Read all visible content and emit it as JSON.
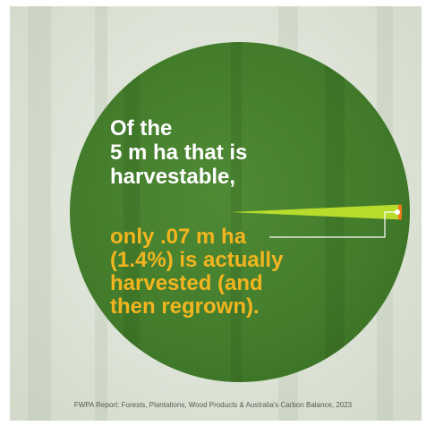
{
  "chart_data": {
    "type": "pie",
    "values": [
      5,
      0.07
    ],
    "units": "m ha",
    "percent": 1.4,
    "headline": [
      "Of the",
      "5 m ha that is",
      "harvestable,"
    ],
    "annotation": [
      "only .07 m ha",
      "(1.4%) is actually",
      "harvested (and",
      "then regrown)."
    ]
  },
  "colors": {
    "disc": "#437d2c",
    "wedge": "#b8dc2c",
    "wedge_edge": "#f07a1a",
    "headline_text": "#ffffff",
    "annotation_text": "#f2b51f",
    "leader_line": "#ffffff"
  },
  "source": "FWPA Report: Forests, Plantations, Wood Products & Australia's Carbon Balance, 2023"
}
